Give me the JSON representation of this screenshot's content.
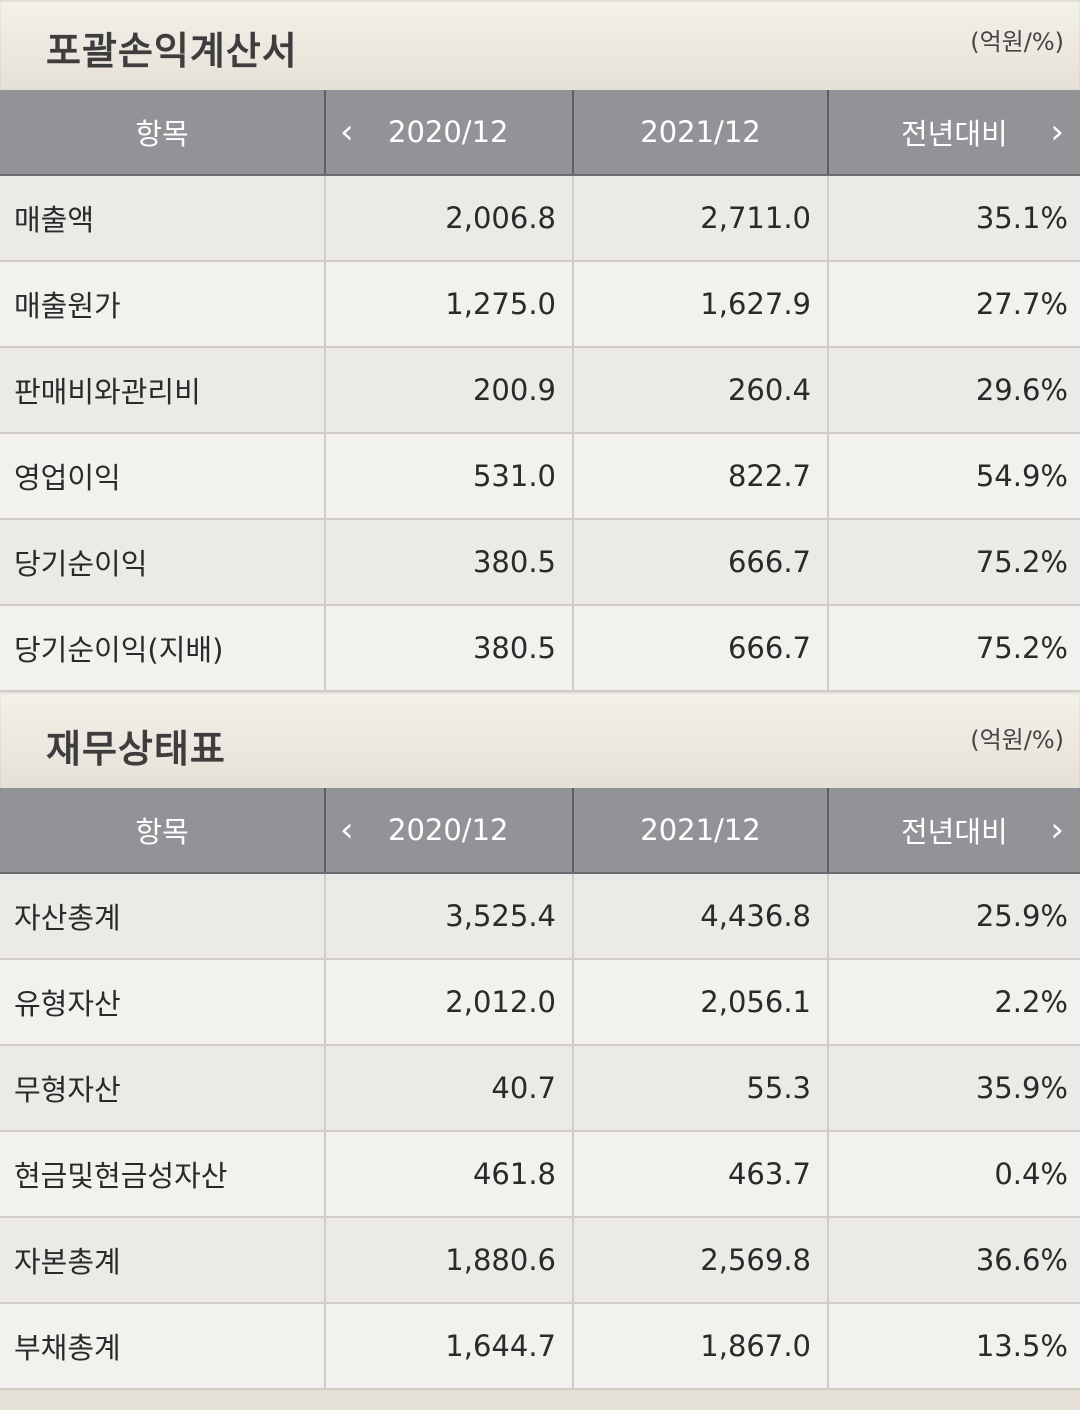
{
  "income_statement": {
    "title": "포괄손익계산서",
    "unit": "(억원/%)",
    "headers": {
      "item": "항목",
      "prev": "2020/12",
      "cur": "2021/12",
      "yoy": "전년대비"
    },
    "rows": [
      {
        "name": "매출액",
        "prev": "2,006.8",
        "cur": "2,711.0",
        "yoy": "35.1%"
      },
      {
        "name": "매출원가",
        "prev": "1,275.0",
        "cur": "1,627.9",
        "yoy": "27.7%"
      },
      {
        "name": "판매비와관리비",
        "prev": "200.9",
        "cur": "260.4",
        "yoy": "29.6%"
      },
      {
        "name": "영업이익",
        "prev": "531.0",
        "cur": "822.7",
        "yoy": "54.9%"
      },
      {
        "name": "당기순이익",
        "prev": "380.5",
        "cur": "666.7",
        "yoy": "75.2%"
      },
      {
        "name": "당기순이익(지배)",
        "prev": "380.5",
        "cur": "666.7",
        "yoy": "75.2%"
      }
    ]
  },
  "balance_sheet": {
    "title": "재무상태표",
    "unit": "(억원/%)",
    "headers": {
      "item": "항목",
      "prev": "2020/12",
      "cur": "2021/12",
      "yoy": "전년대비"
    },
    "rows": [
      {
        "name": "자산총계",
        "prev": "3,525.4",
        "cur": "4,436.8",
        "yoy": "25.9%"
      },
      {
        "name": "유형자산",
        "prev": "2,012.0",
        "cur": "2,056.1",
        "yoy": "2.2%"
      },
      {
        "name": "무형자산",
        "prev": "40.7",
        "cur": "55.3",
        "yoy": "35.9%"
      },
      {
        "name": "현금및현금성자산",
        "prev": "461.8",
        "cur": "463.7",
        "yoy": "0.4%"
      },
      {
        "name": "자본총계",
        "prev": "1,880.6",
        "cur": "2,569.8",
        "yoy": "36.6%"
      },
      {
        "name": "부채총계",
        "prev": "1,644.7",
        "cur": "1,867.0",
        "yoy": "13.5%"
      }
    ]
  },
  "icons": {
    "prev": "chevron-left-icon",
    "next": "chevron-right-icon"
  }
}
